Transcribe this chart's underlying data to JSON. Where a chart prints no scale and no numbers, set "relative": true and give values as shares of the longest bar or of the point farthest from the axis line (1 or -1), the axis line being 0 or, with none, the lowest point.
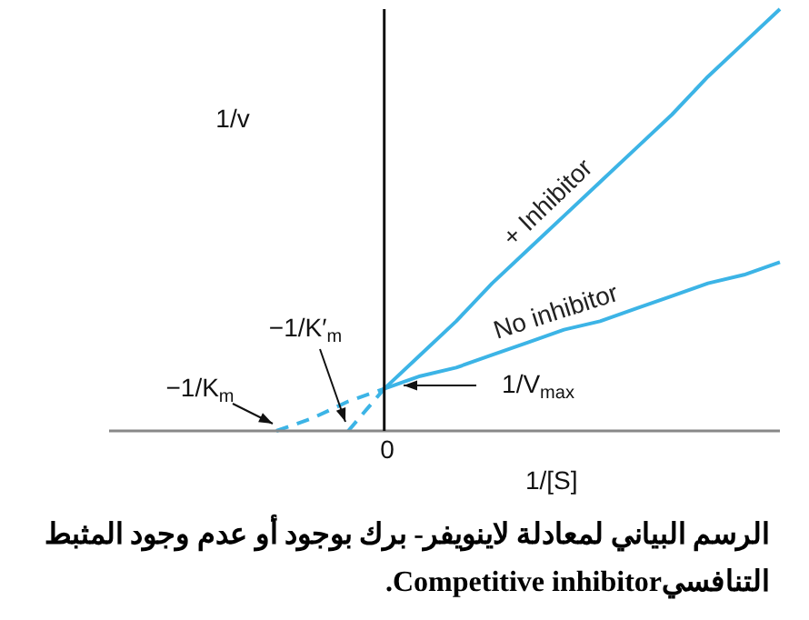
{
  "chart_data": {
    "type": "line",
    "relative": true,
    "xlabel": "1/[S]",
    "ylabel": "1/v",
    "legend": false,
    "marker": "none",
    "line_style": "solid",
    "categories": [
      null,
      null,
      null,
      null,
      null,
      null,
      null,
      null,
      null,
      null,
      null,
      null,
      null,
      null,
      null
    ],
    "series": [
      {
        "name": "+ Inhibitor",
        "color": "#3cb4e6",
        "values": [
          null,
          null,
          null,
          0.1,
          0.18,
          0.26,
          0.35,
          0.43,
          0.51,
          0.59,
          0.67,
          0.75,
          0.84,
          0.92,
          1
        ]
      },
      {
        "color": "#3cb4e6",
        "values": [
          null,
          null,
          0,
          0.1,
          null,
          null,
          null,
          null,
          null,
          null,
          null,
          null,
          null,
          null,
          null
        ],
        "line_style": "dashed"
      },
      {
        "name": "No inhibitor",
        "color": "#3cb4e6",
        "values": [
          null,
          null,
          null,
          0.1,
          0.13,
          0.15,
          0.18,
          0.21,
          0.24,
          0.26,
          0.29,
          0.32,
          0.35,
          0.37,
          0.4
        ]
      },
      {
        "color": "#3cb4e6",
        "values": [
          0,
          0.03,
          0.07,
          0.1,
          null,
          null,
          null,
          null,
          null,
          null,
          null,
          null,
          null,
          null,
          null
        ],
        "line_style": "dashed"
      }
    ],
    "annotations": [
      "−1/K$_{m}$",
      "−1/K′$_{m}$",
      "1/V$_{max}$",
      "0",
      "الرسم البياني لمعادلة لاينويفر- برك بوجود أو عدم وجود المثبط التنافسيCompetitive inhibitor."
    ]
  }
}
